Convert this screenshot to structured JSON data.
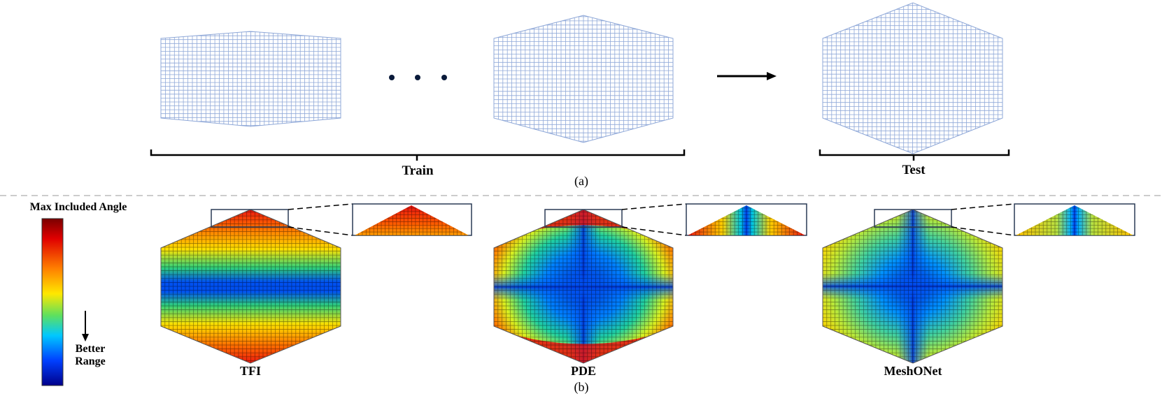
{
  "panel_a": {
    "caption": "(a)",
    "train_label": "Train",
    "test_label": "Test"
  },
  "panel_b": {
    "caption": "(b)",
    "colorbar_title": "Max Included Angle",
    "better_range_line1": "Better",
    "better_range_line2": "Range",
    "methods": [
      "TFI",
      "PDE",
      "MeshONet"
    ]
  },
  "colors": {
    "mesh_line": "#8fa8d8",
    "colorbar": [
      "#8b0000",
      "#e60000",
      "#ff7f00",
      "#ffe600",
      "#4cd94c",
      "#00bfff",
      "#0050ff",
      "#000090"
    ]
  }
}
